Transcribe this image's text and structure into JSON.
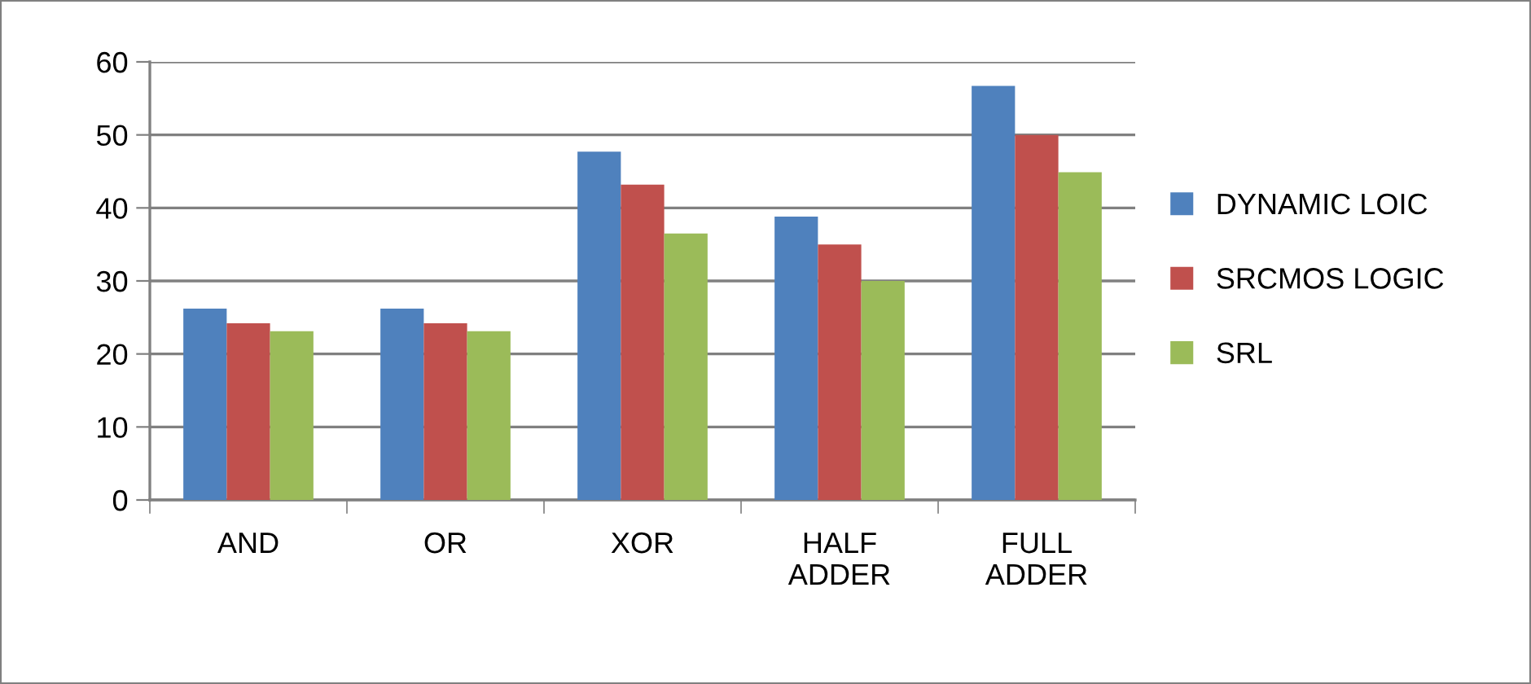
{
  "chart_data": {
    "type": "bar",
    "categories": [
      "AND",
      "OR",
      "XOR",
      "HALF\nADDER",
      "FULL\nADDER"
    ],
    "series": [
      {
        "name": "DYNAMIC LOIC",
        "color": "#4f81bd",
        "values": [
          26.2,
          26.2,
          47.7,
          38.8,
          56.7
        ]
      },
      {
        "name": "SRCMOS LOGIC",
        "color": "#c0504d",
        "values": [
          24.2,
          24.2,
          43.2,
          35.0,
          50.0
        ]
      },
      {
        "name": "SRL",
        "color": "#9bbb59",
        "values": [
          23.1,
          23.1,
          36.5,
          30.0,
          44.9
        ]
      }
    ],
    "ylim": [
      0,
      60
    ],
    "yticks": [
      0,
      10,
      20,
      30,
      40,
      50,
      60
    ],
    "grid": "y",
    "legend": "right"
  }
}
